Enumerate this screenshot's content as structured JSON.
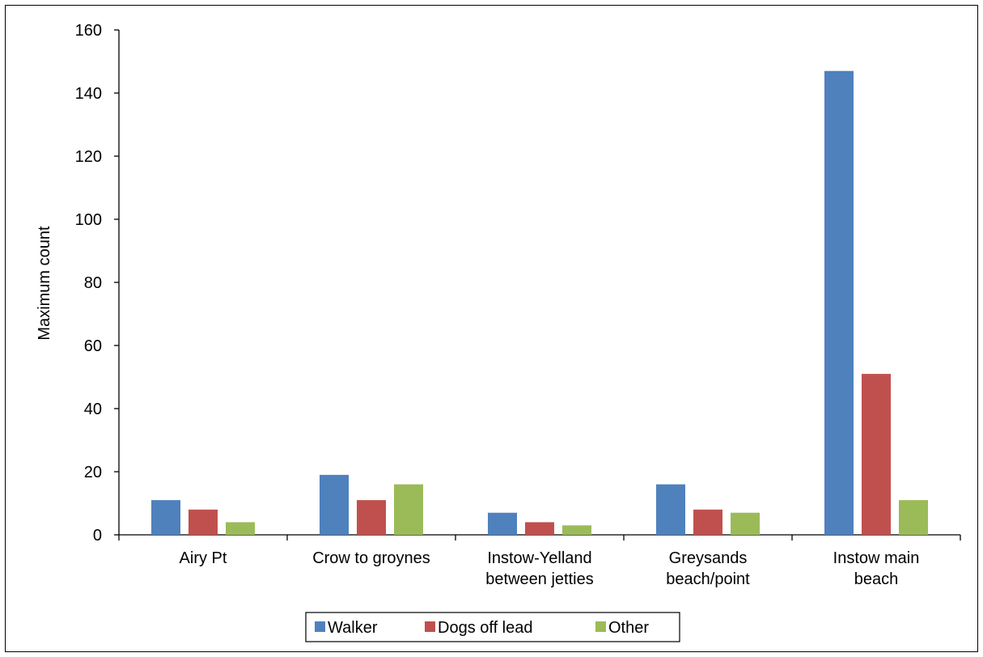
{
  "chart_data": {
    "type": "bar",
    "title": "",
    "xlabel": "",
    "ylabel": "Maximum count",
    "ylim": [
      0,
      160
    ],
    "yticks": [
      0,
      20,
      40,
      60,
      80,
      100,
      120,
      140,
      160
    ],
    "grid": false,
    "legend_position": "bottom",
    "categories": [
      [
        "Airy Pt"
      ],
      [
        "Crow to groynes"
      ],
      [
        "Instow-Yelland",
        "between jetties"
      ],
      [
        "Greysands",
        "beach/point"
      ],
      [
        "Instow main",
        "beach"
      ]
    ],
    "series": [
      {
        "name": "Walker",
        "color": "#4F81BD",
        "values": [
          11,
          19,
          7,
          16,
          147
        ]
      },
      {
        "name": "Dogs off lead",
        "color": "#C0504D",
        "values": [
          8,
          11,
          4,
          8,
          51
        ]
      },
      {
        "name": "Other",
        "color": "#9BBB59",
        "values": [
          4,
          16,
          3,
          7,
          11
        ]
      }
    ]
  }
}
